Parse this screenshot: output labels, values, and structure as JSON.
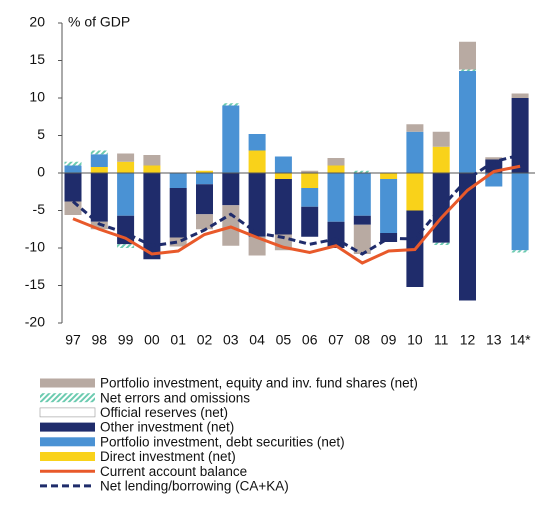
{
  "chart_data": {
    "type": "bar",
    "stacked": true,
    "y_label": "% of GDP",
    "categories": [
      "97",
      "98",
      "99",
      "00",
      "01",
      "02",
      "03",
      "04",
      "05",
      "06",
      "07",
      "08",
      "09",
      "10",
      "11",
      "12",
      "13",
      "14*"
    ],
    "ylim": [
      -20,
      20
    ],
    "yticks": [
      -20,
      -15,
      -10,
      -5,
      0,
      5,
      10,
      15,
      20
    ],
    "series": [
      {
        "name": "Portfolio investment, equity and inv. fund shares (net)",
        "color": "#b8aaa2",
        "values": [
          -1.8,
          -1,
          1.1,
          1.4,
          -1.2,
          -2,
          -5.4,
          -2.5,
          -2.1,
          0.3,
          1,
          -3.9,
          0,
          1,
          2,
          3.7,
          0.3,
          0.6
        ]
      },
      {
        "name": "Net errors and omissions",
        "color": "#6ccbb0",
        "hatch": true,
        "values": [
          0.5,
          0.5,
          -0.5,
          0,
          0,
          0,
          0.3,
          0,
          0,
          0,
          0,
          0.3,
          0,
          0,
          -0.3,
          0.2,
          0,
          -0.3
        ]
      },
      {
        "name": "Official reserves (net)",
        "color": "#ffffff",
        "values": [
          0,
          0,
          0,
          0,
          0,
          0,
          0,
          0,
          0,
          0,
          0,
          0,
          0,
          0,
          0,
          0,
          0,
          0
        ]
      },
      {
        "name": "Other investment (net)",
        "color": "#1f2c6b",
        "values": [
          -3.8,
          -6.5,
          -3.8,
          -11.5,
          -6.6,
          -4,
          -4.3,
          -8.5,
          -7.4,
          -4,
          -3.5,
          -1.2,
          -1.2,
          -10.2,
          -9.3,
          -17,
          1.8,
          10
        ]
      },
      {
        "name": "Portfolio investment, debt securities (net)",
        "color": "#4a92d4",
        "values": [
          1,
          1.7,
          -5.7,
          0,
          -2,
          -1.5,
          9,
          2.2,
          2.2,
          -2.5,
          -6.5,
          -5.7,
          -7.2,
          5.5,
          0,
          13.6,
          -1.8,
          -10.3
        ]
      },
      {
        "name": "Direct investment (net)",
        "color": "#f9d21a",
        "values": [
          0,
          0.8,
          1.5,
          1,
          0,
          0.3,
          0,
          3,
          -0.8,
          -2,
          1,
          0,
          -0.8,
          -5,
          3.5,
          0,
          0,
          0
        ]
      },
      {
        "name": "Current account balance",
        "color": "#e8592a",
        "type": "line",
        "values": [
          -6.1,
          -7.5,
          -8.7,
          -10.8,
          -10.4,
          -8.2,
          -7.2,
          -8.6,
          -9.9,
          -10.6,
          -9.7,
          -12,
          -10.4,
          -10.2,
          -6,
          -2.3,
          0.2,
          0.9
        ]
      },
      {
        "name": "Net lending/borrowing (CA+KA)",
        "color": "#1f2c6b",
        "type": "line",
        "dashed": true,
        "values": [
          -3.8,
          -6.8,
          -8,
          -9.7,
          -9.2,
          -7.6,
          -5.5,
          -8,
          -8.6,
          -9.5,
          -8.8,
          -10.8,
          -8.7,
          -8.8,
          -4.6,
          -0.8,
          1.5,
          2.4
        ]
      }
    ]
  }
}
